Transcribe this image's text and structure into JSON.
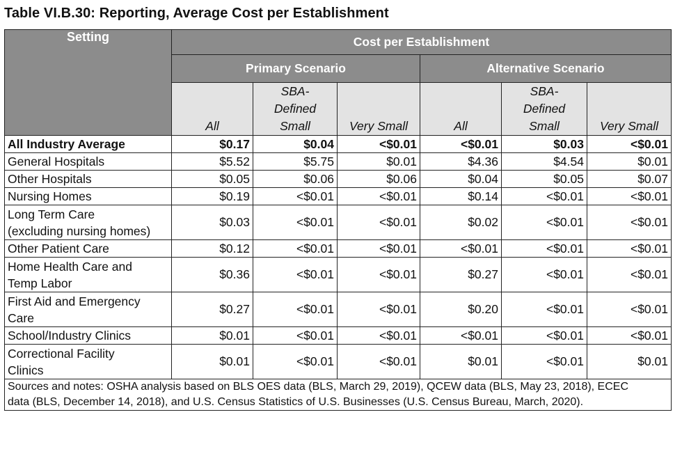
{
  "title": "Table VI.B.30: Reporting, Average Cost per Establishment",
  "header": {
    "setting": "Setting",
    "cost_group": "Cost per Establishment",
    "primary": "Primary Scenario",
    "alternative": "Alternative Scenario",
    "col_all": "All",
    "col_sba_line1": "SBA-",
    "col_sba_line2": "Defined",
    "col_sba_line3": "Small",
    "col_very_small": "Very Small"
  },
  "rows": [
    {
      "setting": "All Industry Average",
      "values": [
        "$0.17",
        "$0.04",
        "<$0.01",
        "<$0.01",
        "$0.03",
        "<$0.01"
      ]
    },
    {
      "setting": "General Hospitals",
      "values": [
        "$5.52",
        "$5.75",
        "$0.01",
        "$4.36",
        "$4.54",
        "$0.01"
      ]
    },
    {
      "setting": "Other Hospitals",
      "values": [
        "$0.05",
        "$0.06",
        "$0.06",
        "$0.04",
        "$0.05",
        "$0.07"
      ]
    },
    {
      "setting": "Nursing Homes",
      "values": [
        "$0.19",
        "<$0.01",
        "<$0.01",
        "$0.14",
        "<$0.01",
        "<$0.01"
      ]
    },
    {
      "setting_line1": "Long Term Care",
      "setting_line2": "(excluding nursing homes)",
      "values": [
        "$0.03",
        "<$0.01",
        "<$0.01",
        "$0.02",
        "<$0.01",
        "<$0.01"
      ]
    },
    {
      "setting": "Other Patient Care",
      "values": [
        "$0.12",
        "<$0.01",
        "<$0.01",
        "<$0.01",
        "<$0.01",
        "<$0.01"
      ]
    },
    {
      "setting_line1": "Home Health Care and",
      "setting_line2": "Temp Labor",
      "values": [
        "$0.36",
        "<$0.01",
        "<$0.01",
        "$0.27",
        "<$0.01",
        "<$0.01"
      ]
    },
    {
      "setting_line1": "First Aid and Emergency",
      "setting_line2": "Care",
      "values": [
        "$0.27",
        "<$0.01",
        "<$0.01",
        "$0.20",
        "<$0.01",
        "<$0.01"
      ]
    },
    {
      "setting": "School/Industry Clinics",
      "values": [
        "$0.01",
        "<$0.01",
        "<$0.01",
        "<$0.01",
        "<$0.01",
        "<$0.01"
      ]
    },
    {
      "setting_line1": "Correctional Facility",
      "setting_line2": "Clinics",
      "values": [
        "$0.01",
        "<$0.01",
        "<$0.01",
        "$0.01",
        "<$0.01",
        "$0.01"
      ]
    }
  ],
  "notes_line1": "Sources and notes: OSHA analysis based on BLS OES data (BLS, March 29, 2019), QCEW data (BLS, May 23, 2018), ECEC",
  "notes_line2": "data (BLS, December 14, 2018), and U.S. Census Statistics of U.S. Businesses (U.S. Census Bureau, March, 2020)."
}
